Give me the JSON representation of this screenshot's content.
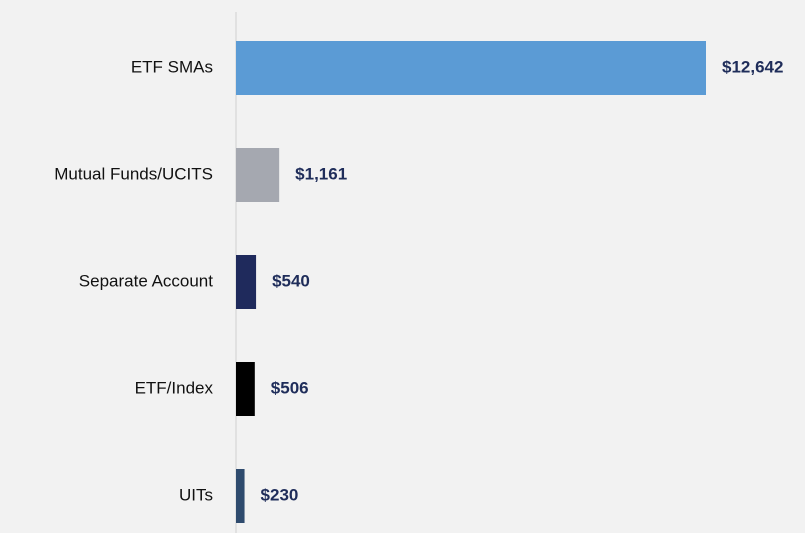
{
  "chart_data": {
    "type": "bar",
    "orientation": "horizontal",
    "categories": [
      "ETF SMAs",
      "Mutual Funds/UCITS",
      "Separate Account",
      "ETF/Index",
      "UITs"
    ],
    "values": [
      12642,
      1161,
      540,
      506,
      230
    ],
    "value_labels": [
      "$12,642",
      "$1,161",
      "$540",
      "$506",
      "$230"
    ],
    "colors": [
      "#5b9bd5",
      "#a5a8b0",
      "#1f2a5c",
      "#000000",
      "#2f4b6e"
    ]
  }
}
